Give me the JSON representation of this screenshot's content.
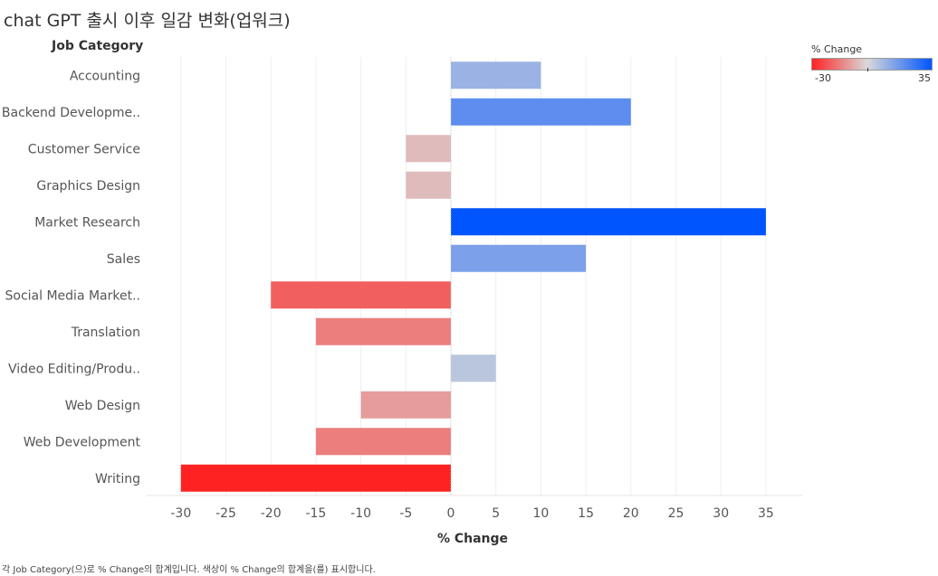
{
  "page": {
    "footnote": "각 Job Category(으)로 % Change의 합계입니다.  색상이 % Change의 합계을(를) 표시합니다."
  },
  "legend": {
    "title": "% Change",
    "min_label": "-30",
    "max_label": "35",
    "color_low": "#ff2222",
    "color_mid": "#d9d9d9",
    "color_high": "#0055ff"
  },
  "chart_data": {
    "type": "bar",
    "orientation": "horizontal",
    "title": "chat GPT 출시 이후 일감 변화(업워크)",
    "row_header": "Job Category",
    "xlabel": "% Change",
    "xlim": [
      -33,
      39
    ],
    "xticks": [
      -30,
      -25,
      -20,
      -15,
      -10,
      -5,
      0,
      5,
      10,
      15,
      20,
      25,
      30,
      35
    ],
    "grid": true,
    "legend_position": "top-right",
    "categories": [
      "Accounting",
      "Backend Developme..",
      "Customer Service",
      "Graphics Design",
      "Market Research",
      "Sales",
      "Social Media Market..",
      "Translation",
      "Video Editing/Produ..",
      "Web Design",
      "Web Development",
      "Writing"
    ],
    "values": [
      10,
      20,
      -5,
      -5,
      35,
      15,
      -20,
      -15,
      5,
      -10,
      -15,
      -30
    ]
  }
}
